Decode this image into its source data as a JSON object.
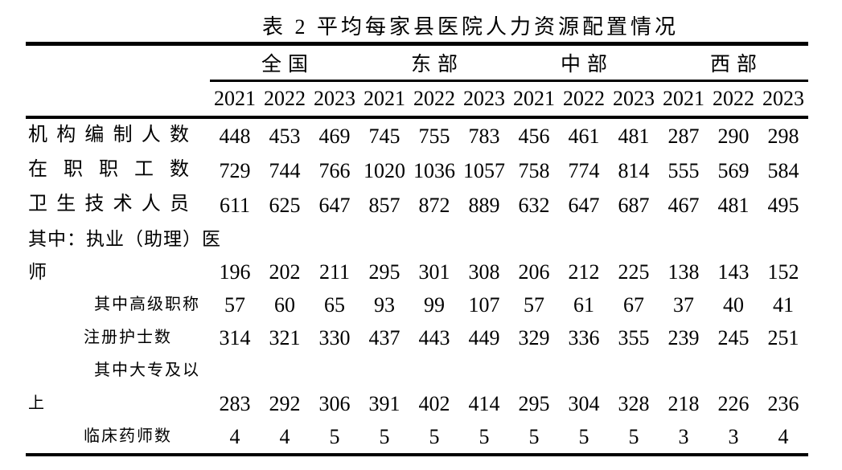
{
  "title": "表 2 平均每家县医院人力资源配置情况",
  "table": {
    "column_groups": [
      "全国",
      "东部",
      "中部",
      "西部"
    ],
    "year_columns": [
      "2021",
      "2022",
      "2023",
      "2021",
      "2022",
      "2023",
      "2021",
      "2022",
      "2023",
      "2021",
      "2022",
      "2023"
    ],
    "rows": [
      {
        "label": "机构编制人数",
        "label_lines": [
          "机构编制人数"
        ],
        "indent": 0,
        "values": [
          "448",
          "453",
          "469",
          "745",
          "755",
          "783",
          "456",
          "461",
          "481",
          "287",
          "290",
          "298"
        ]
      },
      {
        "label": "在职职工数",
        "label_lines": [
          "在职职工数"
        ],
        "indent": 0,
        "values": [
          "729",
          "744",
          "766",
          "1020",
          "1036",
          "1057",
          "758",
          "774",
          "814",
          "555",
          "569",
          "584"
        ]
      },
      {
        "label": "卫生技术人员",
        "label_lines": [
          "卫生技术人员"
        ],
        "indent": 0,
        "values": [
          "611",
          "625",
          "647",
          "857",
          "872",
          "889",
          "632",
          "647",
          "687",
          "467",
          "481",
          "495"
        ]
      },
      {
        "label": "其中：执业（助理）医师",
        "label_lines": [
          "其中：执业（助理）医",
          "师"
        ],
        "indent": 0,
        "values": [
          "196",
          "202",
          "211",
          "295",
          "301",
          "308",
          "206",
          "212",
          "225",
          "138",
          "143",
          "152"
        ]
      },
      {
        "label": "其中高级职称",
        "label_lines": [
          "其中高级职称"
        ],
        "indent": 2,
        "values": [
          "57",
          "60",
          "65",
          "93",
          "99",
          "107",
          "57",
          "61",
          "67",
          "37",
          "40",
          "41"
        ]
      },
      {
        "label": "注册护士数",
        "label_lines": [
          "注册护士数"
        ],
        "indent": 1,
        "values": [
          "314",
          "321",
          "330",
          "437",
          "443",
          "449",
          "329",
          "336",
          "355",
          "239",
          "245",
          "251"
        ]
      },
      {
        "label": "其中大专及以上",
        "label_lines": [
          "其中大专及以",
          "上"
        ],
        "indent": 2,
        "values": [
          "283",
          "292",
          "306",
          "391",
          "402",
          "414",
          "295",
          "304",
          "328",
          "218",
          "226",
          "236"
        ]
      },
      {
        "label": "临床药师数",
        "label_lines": [
          "临床药师数"
        ],
        "indent": 1,
        "values": [
          "4",
          "4",
          "5",
          "5",
          "5",
          "5",
          "5",
          "5",
          "5",
          "3",
          "3",
          "4"
        ]
      }
    ]
  }
}
